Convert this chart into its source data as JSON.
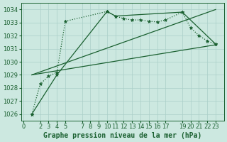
{
  "title": "Graphe pression niveau de la mer (hPa)",
  "bg_color": "#cce8e0",
  "grid_color": "#aacfc8",
  "line_color": "#1a6030",
  "marker_color": "#1a6030",
  "ylim": [
    1025.5,
    1034.5
  ],
  "yticks": [
    1026,
    1027,
    1028,
    1029,
    1030,
    1031,
    1032,
    1033,
    1034
  ],
  "xlim": [
    -0.3,
    24.0
  ],
  "xticks": [
    0,
    2,
    3,
    4,
    5,
    7,
    8,
    9,
    10,
    11,
    12,
    13,
    14,
    15,
    16,
    17,
    19,
    20,
    21,
    22,
    23
  ],
  "dotted_series": {
    "x": [
      1,
      2,
      3,
      4,
      5,
      10,
      11,
      12,
      13,
      14,
      15,
      16,
      17,
      19,
      20,
      21,
      22,
      23
    ],
    "y": [
      1026.0,
      1028.3,
      1028.9,
      1029.2,
      1033.1,
      1033.85,
      1033.5,
      1033.3,
      1033.2,
      1033.2,
      1033.1,
      1033.05,
      1033.2,
      1033.8,
      1032.6,
      1032.0,
      1031.6,
      1031.35
    ]
  },
  "straight_lines": [
    {
      "x": [
        1,
        4,
        10,
        11,
        19,
        23
      ],
      "y": [
        1026.0,
        1029.0,
        1033.85,
        1033.5,
        1033.8,
        1031.35
      ],
      "with_markers": true
    },
    {
      "x": [
        1,
        23
      ],
      "y": [
        1029.0,
        1034.0
      ],
      "with_markers": false
    },
    {
      "x": [
        1,
        23
      ],
      "y": [
        1029.0,
        1031.3
      ],
      "with_markers": false
    }
  ],
  "title_fontsize": 7,
  "tick_fontsize": 6
}
